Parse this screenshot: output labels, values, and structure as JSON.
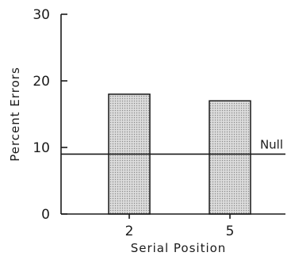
{
  "chart_data": {
    "type": "bar",
    "categories": [
      "2",
      "5"
    ],
    "values": [
      18,
      17
    ],
    "xlabel": "Serial Position",
    "ylabel": "Percent Errors",
    "ylim": [
      0,
      30
    ],
    "yticks": [
      0,
      10,
      20,
      30
    ],
    "grid": false,
    "reference_line": {
      "label": "Null",
      "value": 9
    },
    "bar_fill": "#d2d2d2",
    "axis_color": "#1a1a1a"
  }
}
